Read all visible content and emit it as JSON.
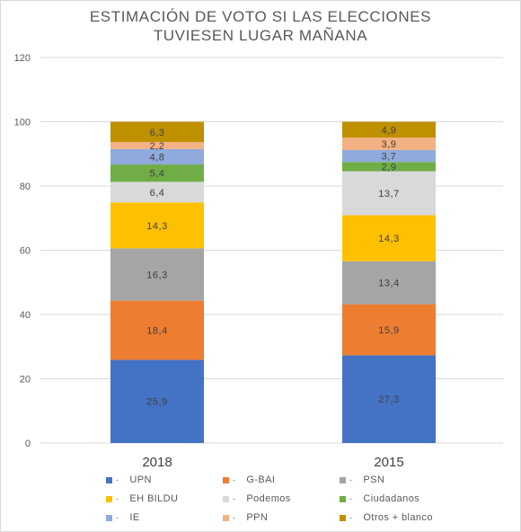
{
  "chart_data": {
    "type": "bar",
    "stacked": true,
    "title_lines": [
      "ESTIMACIÓN DE VOTO SI LAS ELECCIONES",
      "TUVIESEN LUGAR MAÑANA"
    ],
    "categories": [
      "2018",
      "2015"
    ],
    "ylim": [
      0,
      120
    ],
    "yticks": [
      "0",
      "20",
      "40",
      "60",
      "80",
      "100",
      "120"
    ],
    "grid": true,
    "legend_position": "bottom",
    "series": [
      {
        "name": "UPN",
        "color": "#4472C4",
        "values": [
          25.9,
          27.3
        ],
        "labels": [
          "25,9",
          "27,3"
        ]
      },
      {
        "name": "G-BAI",
        "color": "#ED7D31",
        "values": [
          18.4,
          15.9
        ],
        "labels": [
          "18,4",
          "15,9"
        ]
      },
      {
        "name": "PSN",
        "color": "#A5A5A5",
        "values": [
          16.3,
          13.4
        ],
        "labels": [
          "16,3",
          "13,4"
        ]
      },
      {
        "name": "EH BILDU",
        "color": "#FFC000",
        "values": [
          14.3,
          14.3
        ],
        "labels": [
          "14,3",
          "14,3"
        ]
      },
      {
        "name": "Podemos",
        "color": "#D9D9D9",
        "values": [
          6.4,
          13.7
        ],
        "labels": [
          "6,4",
          "13,7"
        ]
      },
      {
        "name": "Ciudadanos",
        "color": "#70AD47",
        "values": [
          5.4,
          2.9
        ],
        "labels": [
          "5,4",
          "2,9"
        ]
      },
      {
        "name": "IE",
        "color": "#8FAADC",
        "values": [
          4.8,
          3.7
        ],
        "labels": [
          "4,8",
          "3,7"
        ]
      },
      {
        "name": "PPN",
        "color": "#F4B183",
        "values": [
          2.2,
          3.9
        ],
        "labels": [
          "2,2",
          "3,9"
        ]
      },
      {
        "name": "Otros + blanco",
        "color": "#BF9000",
        "values": [
          6.3,
          4.9
        ],
        "labels": [
          "6,3",
          "4,9"
        ]
      }
    ]
  }
}
